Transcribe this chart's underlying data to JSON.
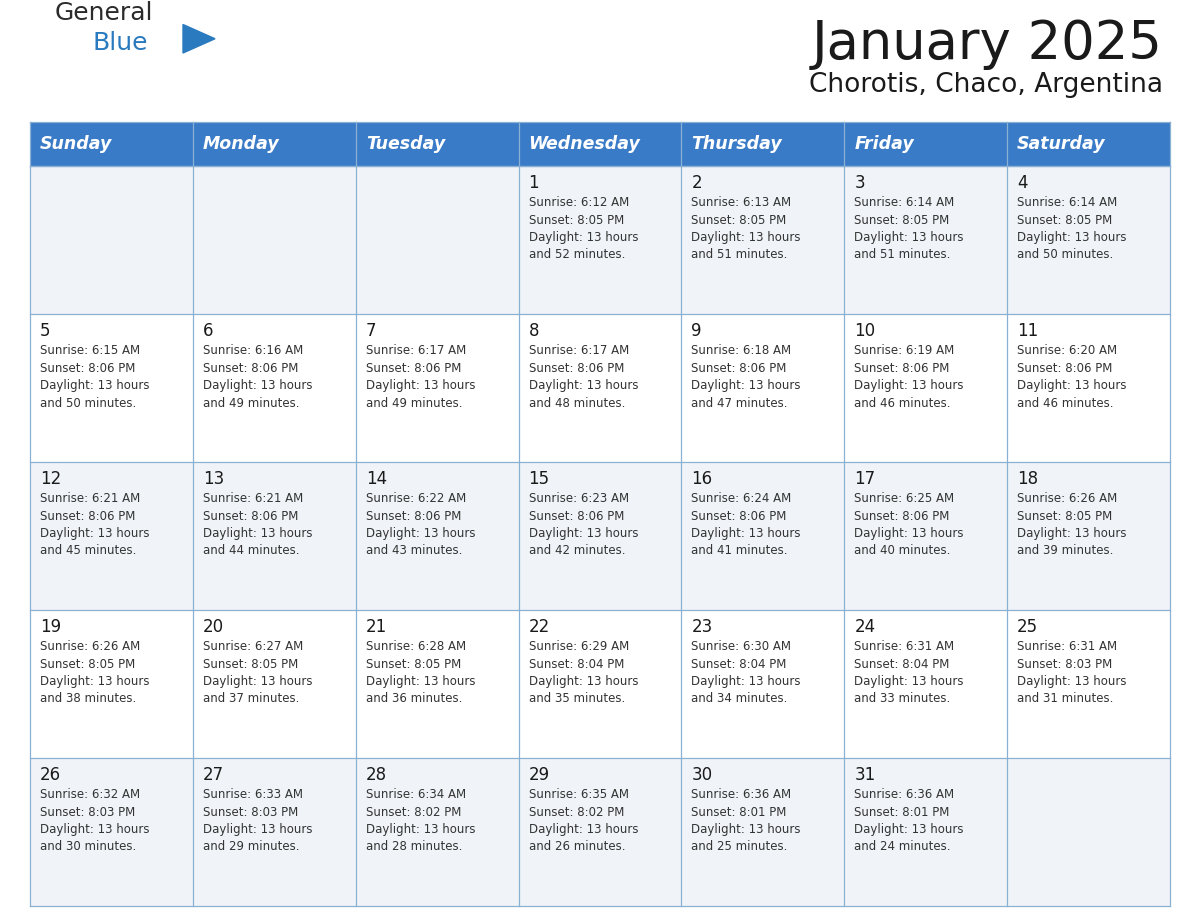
{
  "title": "January 2025",
  "subtitle": "Chorotis, Chaco, Argentina",
  "header_bg": "#3a7bc8",
  "header_text": "#ffffff",
  "row_bg_odd": "#f0f4f8",
  "row_bg_even": "#ffffff",
  "day_headers": [
    "Sunday",
    "Monday",
    "Tuesday",
    "Wednesday",
    "Thursday",
    "Friday",
    "Saturday"
  ],
  "weeks": [
    [
      {
        "day": "",
        "info": ""
      },
      {
        "day": "",
        "info": ""
      },
      {
        "day": "",
        "info": ""
      },
      {
        "day": "1",
        "info": "Sunrise: 6:12 AM\nSunset: 8:05 PM\nDaylight: 13 hours\nand 52 minutes."
      },
      {
        "day": "2",
        "info": "Sunrise: 6:13 AM\nSunset: 8:05 PM\nDaylight: 13 hours\nand 51 minutes."
      },
      {
        "day": "3",
        "info": "Sunrise: 6:14 AM\nSunset: 8:05 PM\nDaylight: 13 hours\nand 51 minutes."
      },
      {
        "day": "4",
        "info": "Sunrise: 6:14 AM\nSunset: 8:05 PM\nDaylight: 13 hours\nand 50 minutes."
      }
    ],
    [
      {
        "day": "5",
        "info": "Sunrise: 6:15 AM\nSunset: 8:06 PM\nDaylight: 13 hours\nand 50 minutes."
      },
      {
        "day": "6",
        "info": "Sunrise: 6:16 AM\nSunset: 8:06 PM\nDaylight: 13 hours\nand 49 minutes."
      },
      {
        "day": "7",
        "info": "Sunrise: 6:17 AM\nSunset: 8:06 PM\nDaylight: 13 hours\nand 49 minutes."
      },
      {
        "day": "8",
        "info": "Sunrise: 6:17 AM\nSunset: 8:06 PM\nDaylight: 13 hours\nand 48 minutes."
      },
      {
        "day": "9",
        "info": "Sunrise: 6:18 AM\nSunset: 8:06 PM\nDaylight: 13 hours\nand 47 minutes."
      },
      {
        "day": "10",
        "info": "Sunrise: 6:19 AM\nSunset: 8:06 PM\nDaylight: 13 hours\nand 46 minutes."
      },
      {
        "day": "11",
        "info": "Sunrise: 6:20 AM\nSunset: 8:06 PM\nDaylight: 13 hours\nand 46 minutes."
      }
    ],
    [
      {
        "day": "12",
        "info": "Sunrise: 6:21 AM\nSunset: 8:06 PM\nDaylight: 13 hours\nand 45 minutes."
      },
      {
        "day": "13",
        "info": "Sunrise: 6:21 AM\nSunset: 8:06 PM\nDaylight: 13 hours\nand 44 minutes."
      },
      {
        "day": "14",
        "info": "Sunrise: 6:22 AM\nSunset: 8:06 PM\nDaylight: 13 hours\nand 43 minutes."
      },
      {
        "day": "15",
        "info": "Sunrise: 6:23 AM\nSunset: 8:06 PM\nDaylight: 13 hours\nand 42 minutes."
      },
      {
        "day": "16",
        "info": "Sunrise: 6:24 AM\nSunset: 8:06 PM\nDaylight: 13 hours\nand 41 minutes."
      },
      {
        "day": "17",
        "info": "Sunrise: 6:25 AM\nSunset: 8:06 PM\nDaylight: 13 hours\nand 40 minutes."
      },
      {
        "day": "18",
        "info": "Sunrise: 6:26 AM\nSunset: 8:05 PM\nDaylight: 13 hours\nand 39 minutes."
      }
    ],
    [
      {
        "day": "19",
        "info": "Sunrise: 6:26 AM\nSunset: 8:05 PM\nDaylight: 13 hours\nand 38 minutes."
      },
      {
        "day": "20",
        "info": "Sunrise: 6:27 AM\nSunset: 8:05 PM\nDaylight: 13 hours\nand 37 minutes."
      },
      {
        "day": "21",
        "info": "Sunrise: 6:28 AM\nSunset: 8:05 PM\nDaylight: 13 hours\nand 36 minutes."
      },
      {
        "day": "22",
        "info": "Sunrise: 6:29 AM\nSunset: 8:04 PM\nDaylight: 13 hours\nand 35 minutes."
      },
      {
        "day": "23",
        "info": "Sunrise: 6:30 AM\nSunset: 8:04 PM\nDaylight: 13 hours\nand 34 minutes."
      },
      {
        "day": "24",
        "info": "Sunrise: 6:31 AM\nSunset: 8:04 PM\nDaylight: 13 hours\nand 33 minutes."
      },
      {
        "day": "25",
        "info": "Sunrise: 6:31 AM\nSunset: 8:03 PM\nDaylight: 13 hours\nand 31 minutes."
      }
    ],
    [
      {
        "day": "26",
        "info": "Sunrise: 6:32 AM\nSunset: 8:03 PM\nDaylight: 13 hours\nand 30 minutes."
      },
      {
        "day": "27",
        "info": "Sunrise: 6:33 AM\nSunset: 8:03 PM\nDaylight: 13 hours\nand 29 minutes."
      },
      {
        "day": "28",
        "info": "Sunrise: 6:34 AM\nSunset: 8:02 PM\nDaylight: 13 hours\nand 28 minutes."
      },
      {
        "day": "29",
        "info": "Sunrise: 6:35 AM\nSunset: 8:02 PM\nDaylight: 13 hours\nand 26 minutes."
      },
      {
        "day": "30",
        "info": "Sunrise: 6:36 AM\nSunset: 8:01 PM\nDaylight: 13 hours\nand 25 minutes."
      },
      {
        "day": "31",
        "info": "Sunrise: 6:36 AM\nSunset: 8:01 PM\nDaylight: 13 hours\nand 24 minutes."
      },
      {
        "day": "",
        "info": ""
      }
    ]
  ],
  "logo_general_color": "#2b2b2b",
  "logo_blue_color": "#2a7abf",
  "title_fontsize": 38,
  "subtitle_fontsize": 19,
  "header_fontsize": 12.5,
  "cell_day_fontsize": 11,
  "cell_info_fontsize": 8.5,
  "fig_width": 11.88,
  "fig_height": 9.18,
  "dpi": 100
}
